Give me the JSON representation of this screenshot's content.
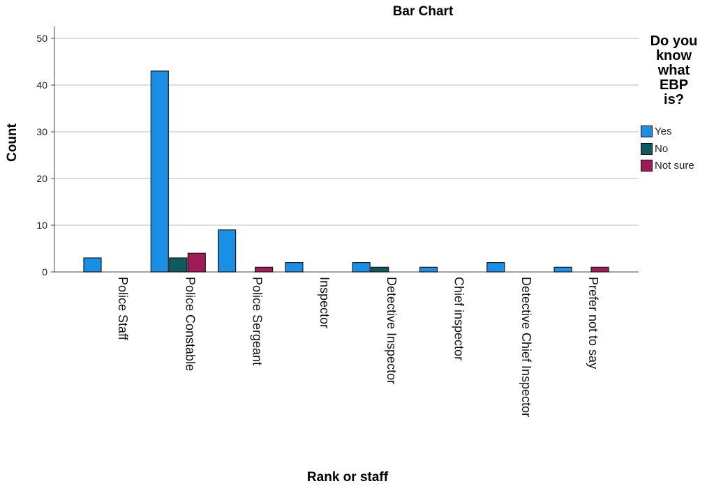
{
  "chart_data": {
    "type": "bar",
    "title": "Bar Chart",
    "xlabel": "Rank or staff",
    "ylabel": "Count",
    "ylim": [
      0,
      50
    ],
    "yticks": [
      0,
      10,
      20,
      30,
      40,
      50
    ],
    "grid": true,
    "legend_title": "Do you\nknow\nwhat\nEBP\nis?",
    "legend_position": "right",
    "categories": [
      "Police Staff",
      "Police Constable",
      "Police Sergeant",
      "Inspector",
      "Detective Inspector",
      "Chief inspector",
      "Detective Chief Inspector",
      "Prefer not to say"
    ],
    "series": [
      {
        "name": "Yes",
        "color": "#1b8ee6",
        "values": [
          3,
          43,
          9,
          2,
          2,
          1,
          2,
          1
        ]
      },
      {
        "name": "No",
        "color": "#0e5a5c",
        "values": [
          0,
          3,
          0,
          0,
          1,
          0,
          0,
          0
        ]
      },
      {
        "name": "Not sure",
        "color": "#a01a58",
        "values": [
          0,
          4,
          1,
          0,
          0,
          0,
          0,
          1
        ]
      }
    ]
  }
}
